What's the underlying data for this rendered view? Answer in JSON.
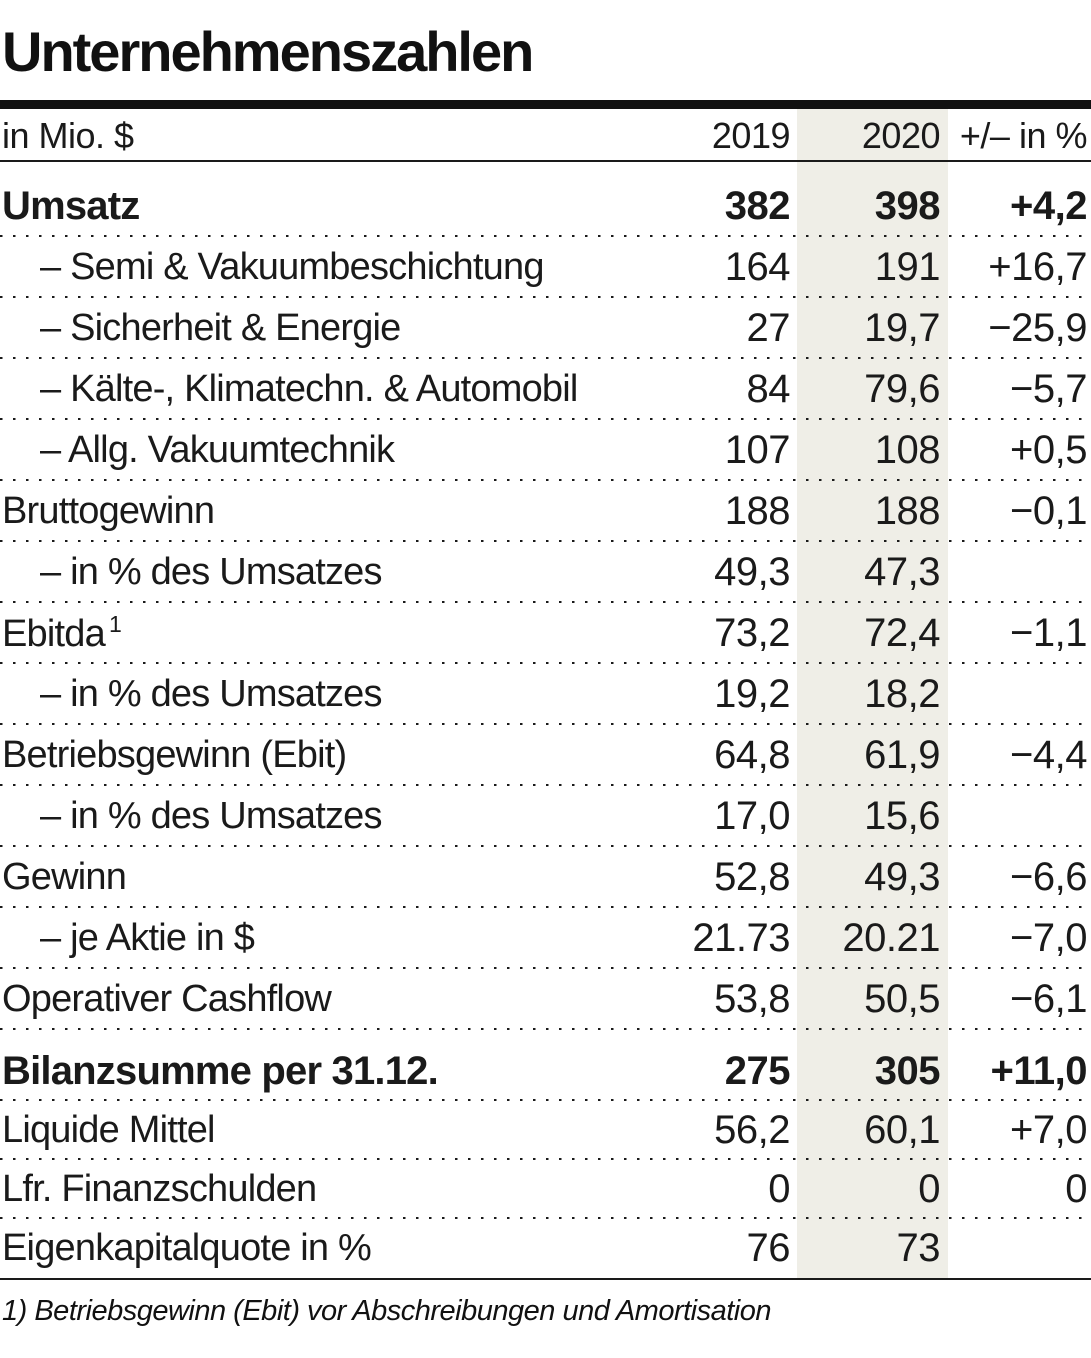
{
  "chart_data": {
    "type": "table",
    "title": "Unternehmenszahlen",
    "unit_label": "in Mio. $",
    "columns": [
      "2019",
      "2020",
      "+/– in %"
    ],
    "highlight_column": "2020",
    "rows": [
      {
        "label": "Umsatz",
        "v2019": "382",
        "v2020": "398",
        "change": "+4,2",
        "emphasis": true,
        "indent": false
      },
      {
        "label": "– Semi & Vakuumbeschichtung",
        "v2019": "164",
        "v2020": "191",
        "change": "+16,7",
        "indent": true
      },
      {
        "label": "– Sicherheit & Energie",
        "v2019": "27",
        "v2020": "19,7",
        "change": "−25,9",
        "indent": true
      },
      {
        "label": "– Kälte-, Klimatechn. & Automobil",
        "v2019": "84",
        "v2020": "79,6",
        "change": "−5,7",
        "indent": true
      },
      {
        "label": "– Allg. Vakuumtechnik",
        "v2019": "107",
        "v2020": "108",
        "change": "+0,5",
        "indent": true
      },
      {
        "label": "Bruttogewinn",
        "v2019": "188",
        "v2020": "188",
        "change": "−0,1"
      },
      {
        "label": "– in % des Umsatzes",
        "v2019": "49,3",
        "v2020": "47,3",
        "change": "",
        "indent": true
      },
      {
        "label": "Ebitda",
        "sup": "1",
        "v2019": "73,2",
        "v2020": "72,4",
        "change": "−1,1"
      },
      {
        "label": "– in % des Umsatzes",
        "v2019": "19,2",
        "v2020": "18,2",
        "change": "",
        "indent": true
      },
      {
        "label": "Betriebsgewinn (Ebit)",
        "v2019": "64,8",
        "v2020": "61,9",
        "change": "−4,4"
      },
      {
        "label": "– in % des Umsatzes",
        "v2019": "17,0",
        "v2020": "15,6",
        "change": "",
        "indent": true
      },
      {
        "label": "Gewinn",
        "v2019": "52,8",
        "v2020": "49,3",
        "change": "−6,6"
      },
      {
        "label": "– je Aktie in $",
        "v2019": "21.73",
        "v2020": "20.21",
        "change": "−7,0",
        "indent": true
      },
      {
        "label": "Operativer Cashflow",
        "v2019": "53,8",
        "v2020": "50,5",
        "change": "−6,1"
      },
      {
        "label": "Bilanzsumme per 31.12.",
        "v2019": "275",
        "v2020": "305",
        "change": "+11,0",
        "emphasis": true,
        "section_break": true
      },
      {
        "label": "Liquide Mittel",
        "v2019": "56,2",
        "v2020": "60,1",
        "change": "+7,0",
        "short": true
      },
      {
        "label": "Lfr. Finanzschulden",
        "v2019": "0",
        "v2020": "0",
        "change": "0",
        "short": true
      },
      {
        "label": "Eigenkapitalquote in %",
        "v2019": "76",
        "v2020": "73",
        "change": "",
        "short": true
      }
    ],
    "footnote": "1) Betriebsgewinn (Ebit) vor Abschreibungen und Amortisation",
    "colors": {
      "highlight_band": "#EFEEE7",
      "text": "#1A1A1A",
      "rule": "#111111"
    },
    "layout_hints": {
      "grid": "dotted row separators",
      "legend_position": "none"
    }
  }
}
